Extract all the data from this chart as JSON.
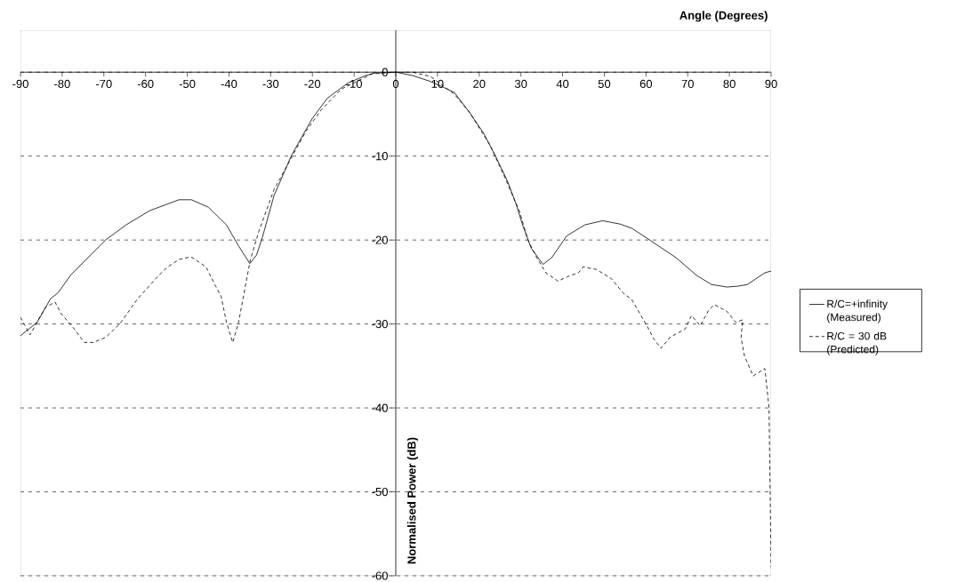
{
  "chart_data": {
    "type": "line",
    "xlabel": "Angle (Degrees)",
    "ylabel": "Normalised Power (dB)",
    "xlim": [
      -90,
      90
    ],
    "ylim": [
      -60,
      5
    ],
    "xticks": [
      -90,
      -80,
      -70,
      -60,
      -50,
      -40,
      -30,
      -20,
      -10,
      0,
      10,
      20,
      30,
      40,
      50,
      60,
      70,
      80,
      90
    ],
    "yticks": [
      0,
      -10,
      -20,
      -30,
      -40,
      -50,
      -60
    ],
    "grid": "y",
    "legend": "right",
    "marker": "none",
    "series": [
      {
        "name": "R/C=+infinity (Measured)",
        "color": "#000000",
        "line_style": "solid",
        "x": [
          -90,
          -86,
          -82.8,
          -81,
          -78,
          -69.6,
          -64.7,
          -59,
          -52,
          -49,
          -44.9,
          -40.6,
          -37.7,
          -35,
          -33.4,
          -32,
          -29.2,
          -24.9,
          -20,
          -16.4,
          -11.5,
          -7.2,
          -5,
          0,
          4,
          8.3,
          14,
          17.7,
          21.1,
          24,
          26.8,
          28.9,
          30.4,
          32.5,
          35.3,
          37.4,
          41,
          45.3,
          49.6,
          53.8,
          56.6,
          60.9,
          67.2,
          72.1,
          75.7,
          79.4,
          82,
          84.3,
          88.5,
          90
        ],
        "values": [
          -31.4,
          -29.8,
          -27,
          -26.3,
          -24.2,
          -20,
          -18.2,
          -16.5,
          -15.2,
          -15.2,
          -16.1,
          -18.2,
          -20.7,
          -22.8,
          -21.8,
          -19.7,
          -14.7,
          -9.8,
          -5.5,
          -3.1,
          -1.3,
          -0.4,
          -0.1,
          0,
          -0.4,
          -1.1,
          -2.4,
          -4.8,
          -7.3,
          -10.1,
          -13,
          -15.8,
          -18.2,
          -21,
          -22.9,
          -22.1,
          -19.5,
          -18.2,
          -17.7,
          -18.1,
          -18.6,
          -20,
          -22.1,
          -24.2,
          -25.3,
          -25.6,
          -25.5,
          -25.3,
          -23.9,
          -23.7
        ]
      },
      {
        "name": "R/C = 30 dB (Predicted)",
        "color": "#000000",
        "line_style": "dashed",
        "x": [
          -90,
          -87.7,
          -84,
          -81.7,
          -80.2,
          -77.4,
          -74.7,
          -72.5,
          -69.6,
          -66.2,
          -61.9,
          -56.8,
          -54.7,
          -51.9,
          -49.1,
          -45.5,
          -43.4,
          -41.9,
          -40.6,
          -39.1,
          -37.7,
          -36,
          -34.9,
          -32.8,
          -29.2,
          -25.7,
          -21.5,
          -17.9,
          -13,
          -5.7,
          0,
          4,
          8.3,
          14,
          17.7,
          22.6,
          26.2,
          29.6,
          31.7,
          33.8,
          36,
          38.9,
          41,
          43.8,
          44.9,
          48.1,
          51.7,
          54.5,
          56.6,
          60.2,
          61.9,
          63.6,
          65.7,
          69.4,
          70.9,
          73,
          75.1,
          76.4,
          79.4,
          81.5,
          83.2,
          82.8,
          83.6,
          85.7,
          88.5,
          89.5,
          90
        ],
        "values": [
          -29.2,
          -31.3,
          -28,
          -27.4,
          -28.8,
          -30.4,
          -32.2,
          -32.2,
          -31.6,
          -30,
          -27,
          -24.2,
          -23.2,
          -22.3,
          -22,
          -23.2,
          -25.3,
          -26.7,
          -29.8,
          -32.2,
          -29.8,
          -25.3,
          -22.4,
          -18.9,
          -14,
          -10.8,
          -7,
          -4.5,
          -2,
          -0.2,
          0,
          0,
          -0.5,
          -2.6,
          -4.8,
          -8.7,
          -12.6,
          -16.5,
          -20,
          -22.1,
          -23.9,
          -24.9,
          -24.4,
          -23.9,
          -23.2,
          -23.5,
          -24.6,
          -26.3,
          -27.1,
          -30.2,
          -31.8,
          -32.9,
          -31.6,
          -30.6,
          -29,
          -30.2,
          -28.3,
          -27.7,
          -28.5,
          -29.8,
          -29.5,
          -31.6,
          -33.8,
          -36.2,
          -35.3,
          -40,
          -59
        ]
      }
    ]
  }
}
